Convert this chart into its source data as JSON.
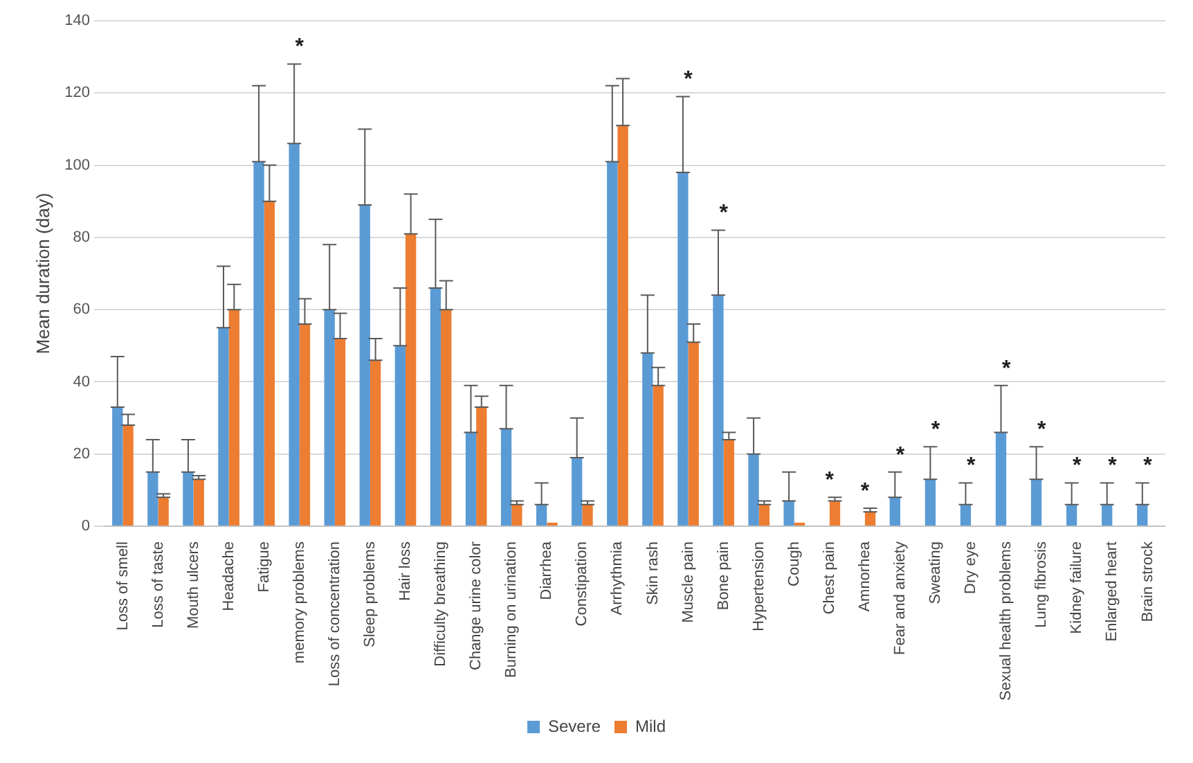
{
  "chart_data": {
    "type": "bar",
    "ylabel": "Mean duration (day)",
    "categories": [
      "Loss of smell",
      "Loss of taste",
      "Mouth ulcers",
      "Headache",
      "Fatigue",
      "memory problems",
      "Loss of concentration",
      "Sleep problems",
      "Hair loss",
      "Difficulty breathing",
      "Change urine color",
      "Burning on urination",
      "Diarrhea",
      "Constipation",
      "Arrhythmia",
      "Skin rash",
      "Muscle pain",
      "Bone pain",
      "Hypertension",
      "Cough",
      "Chest pain",
      "Amnorhea",
      "Fear and anxiety",
      "Sweating",
      "Dry eye",
      "Sexual health problems",
      "Lung fibrosis",
      "Kidney failure",
      "Enlarged heart",
      "Brain strock"
    ],
    "series": [
      {
        "name": "Severe",
        "color": "#5b9bd5",
        "values": [
          33,
          15,
          15,
          55,
          101,
          106,
          60,
          89,
          50,
          66,
          26,
          27,
          6,
          19,
          101,
          48,
          98,
          64,
          20,
          7,
          0,
          0,
          8,
          13,
          6,
          26,
          13,
          6,
          6,
          6
        ],
        "errors": [
          [
            33,
            47
          ],
          [
            15,
            24
          ],
          [
            15,
            24
          ],
          [
            55,
            72
          ],
          [
            101,
            122
          ],
          [
            106,
            128
          ],
          [
            60,
            78
          ],
          [
            89,
            110
          ],
          [
            50,
            66
          ],
          [
            66,
            85
          ],
          [
            26,
            39
          ],
          [
            27,
            39
          ],
          [
            6,
            12
          ],
          [
            19,
            30
          ],
          [
            101,
            122
          ],
          [
            48,
            64
          ],
          [
            98,
            119
          ],
          [
            64,
            82
          ],
          [
            20,
            30
          ],
          [
            7,
            15
          ],
          null,
          null,
          [
            8,
            15
          ],
          [
            13,
            22
          ],
          [
            6,
            12
          ],
          [
            26,
            39
          ],
          [
            13,
            22
          ],
          [
            6,
            12
          ],
          [
            6,
            12
          ],
          [
            6,
            12
          ]
        ]
      },
      {
        "name": "Mild",
        "color": "#ed7d31",
        "values": [
          28,
          8,
          13,
          60,
          90,
          56,
          52,
          46,
          81,
          60,
          33,
          6,
          1,
          6,
          111,
          39,
          51,
          24,
          6,
          1,
          7,
          4,
          0,
          0,
          0,
          0,
          0,
          0,
          0,
          0
        ],
        "errors": [
          [
            28,
            31
          ],
          [
            8,
            9
          ],
          [
            13,
            14
          ],
          [
            60,
            67
          ],
          [
            90,
            100
          ],
          [
            56,
            63
          ],
          [
            52,
            59
          ],
          [
            46,
            52
          ],
          [
            81,
            92
          ],
          [
            60,
            68
          ],
          [
            33,
            36
          ],
          [
            6,
            7
          ],
          null,
          [
            6,
            7
          ],
          [
            111,
            124
          ],
          [
            39,
            44
          ],
          [
            51,
            56
          ],
          [
            24,
            26
          ],
          [
            6,
            7
          ],
          null,
          [
            7,
            8
          ],
          [
            4,
            5
          ],
          null,
          null,
          null,
          null,
          null,
          null,
          null,
          null
        ]
      }
    ],
    "ylim": [
      0,
      140
    ],
    "yticks": [
      0,
      20,
      40,
      60,
      80,
      100,
      120,
      140
    ],
    "grid": "y",
    "legend": "bottom",
    "annotations": [
      {
        "text": "*",
        "x": "memory problems",
        "y": 128
      },
      {
        "text": "*",
        "x": "Muscle pain",
        "y": 119
      },
      {
        "text": "*",
        "x": "Bone pain",
        "y": 82
      },
      {
        "text": "*",
        "x": "Chest pain",
        "y": 8
      },
      {
        "text": "*",
        "x": "Amnorhea",
        "y": 5
      },
      {
        "text": "*",
        "x": "Fear and anxiety",
        "y": 15
      },
      {
        "text": "*",
        "x": "Sweating",
        "y": 22
      },
      {
        "text": "*",
        "x": "Dry eye",
        "y": 12
      },
      {
        "text": "*",
        "x": "Sexual health problems",
        "y": 39
      },
      {
        "text": "*",
        "x": "Lung fibrosis",
        "y": 22
      },
      {
        "text": "*",
        "x": "Kidney failure",
        "y": 12
      },
      {
        "text": "*",
        "x": "Enlarged heart",
        "y": 12
      },
      {
        "text": "*",
        "x": "Brain strock",
        "y": 12
      }
    ]
  }
}
